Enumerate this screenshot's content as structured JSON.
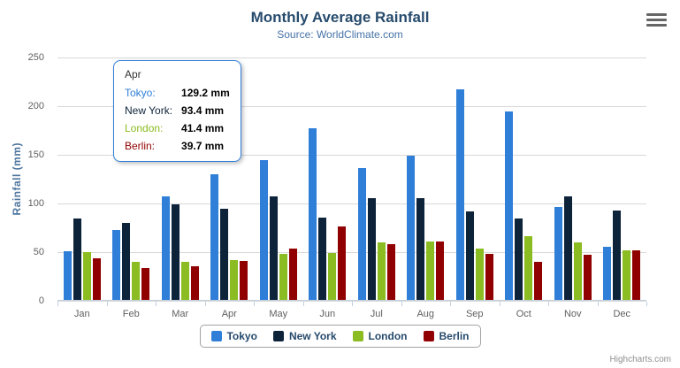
{
  "chart_data": {
    "type": "bar",
    "title": "Monthly Average Rainfall",
    "subtitle": "Source: WorldClimate.com",
    "xlabel": "",
    "ylabel": "Rainfall (mm)",
    "ylim": [
      0,
      250
    ],
    "yticks": [
      0,
      50,
      100,
      150,
      200,
      250
    ],
    "grid": true,
    "legend_position": "bottom",
    "categories": [
      "Jan",
      "Feb",
      "Mar",
      "Apr",
      "May",
      "Jun",
      "Jul",
      "Aug",
      "Sep",
      "Oct",
      "Nov",
      "Dec"
    ],
    "series": [
      {
        "name": "Tokyo",
        "color": "#2f7ed8",
        "values": [
          49.9,
          71.5,
          106.4,
          129.2,
          144.0,
          176.0,
          135.6,
          148.5,
          216.4,
          194.1,
          95.6,
          54.4
        ]
      },
      {
        "name": "New York",
        "color": "#0d233a",
        "values": [
          83.6,
          78.8,
          98.5,
          93.4,
          106.0,
          84.5,
          105.0,
          104.3,
          91.2,
          83.5,
          106.6,
          92.3
        ]
      },
      {
        "name": "London",
        "color": "#8bbc21",
        "values": [
          48.9,
          38.8,
          39.3,
          41.4,
          47.0,
          48.3,
          59.0,
          59.6,
          52.4,
          65.2,
          59.3,
          51.2
        ]
      },
      {
        "name": "Berlin",
        "color": "#910000",
        "values": [
          42.4,
          33.2,
          34.5,
          39.7,
          52.6,
          75.5,
          57.4,
          60.4,
          47.6,
          39.1,
          46.8,
          51.1
        ]
      }
    ]
  },
  "tooltip": {
    "header": "Apr",
    "rows": [
      {
        "label": "Tokyo:",
        "value": "129.2 mm",
        "color": "#2f7ed8"
      },
      {
        "label": "New York:",
        "value": "93.4 mm",
        "color": "#0d233a"
      },
      {
        "label": "London:",
        "value": "41.4 mm",
        "color": "#8bbc21"
      },
      {
        "label": "Berlin:",
        "value": "39.7 mm",
        "color": "#910000"
      }
    ]
  },
  "credits": {
    "label": "Highcharts.com"
  },
  "colors": {
    "title": "#274b6d",
    "subtitle": "#4572a7",
    "axis_title": "#4d759e",
    "axis_label": "#606060",
    "gridline": "#d8d8d8",
    "axis_line": "#c0d0e0",
    "tooltip_border": "#2f7ed8",
    "legend_border": "#a3a3a3",
    "credits": "#909090"
  }
}
